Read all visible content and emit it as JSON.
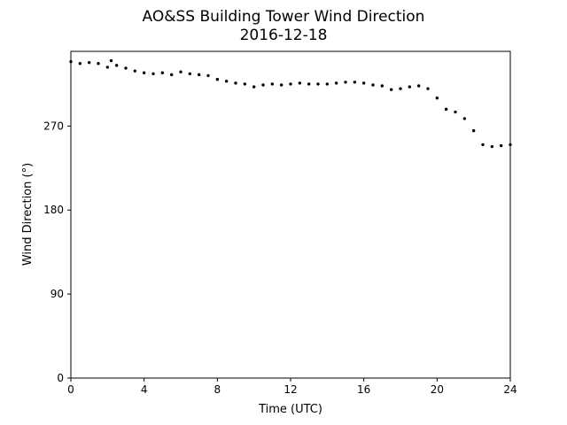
{
  "chart_data": {
    "type": "scatter",
    "title": "AO&SS Building Tower Wind Direction",
    "subtitle": "2016-12-18",
    "xlabel": "Time (UTC)",
    "ylabel": "Wind Direction (°)",
    "xlim": [
      0,
      24
    ],
    "ylim": [
      0,
      350
    ],
    "xticks": [
      0,
      4,
      8,
      12,
      16,
      20,
      24
    ],
    "yticks": [
      0,
      90,
      180,
      270
    ],
    "grid": false,
    "legend": "none",
    "marker_color": "#000000",
    "series": [
      {
        "x": [
          0.0,
          0.5,
          1.0,
          1.5,
          2.0,
          2.2,
          2.5,
          3.0,
          3.5,
          4.0,
          4.5,
          5.0,
          5.5,
          6.0,
          6.5,
          7.0,
          7.5,
          8.0,
          8.5,
          9.0,
          9.5,
          10.0,
          10.5,
          11.0,
          11.5,
          12.0,
          12.5,
          13.0,
          13.5,
          14.0,
          14.5,
          15.0,
          15.5,
          16.0,
          16.5,
          17.0,
          17.5,
          18.0,
          18.5,
          19.0,
          19.5,
          20.0,
          20.5,
          21.0,
          21.5,
          22.0,
          22.5,
          23.0,
          23.5,
          24.0
        ],
        "y": [
          339,
          337,
          338,
          337,
          333,
          340,
          335,
          332,
          329,
          327,
          326,
          327,
          325,
          328,
          326,
          325,
          324,
          320,
          318,
          316,
          315,
          312,
          314,
          315,
          314,
          315,
          316,
          315,
          315,
          315,
          316,
          317,
          317,
          316,
          314,
          313,
          309,
          310,
          312,
          313,
          310,
          300,
          288,
          285,
          278,
          265,
          250,
          248,
          249,
          250
        ]
      }
    ]
  }
}
